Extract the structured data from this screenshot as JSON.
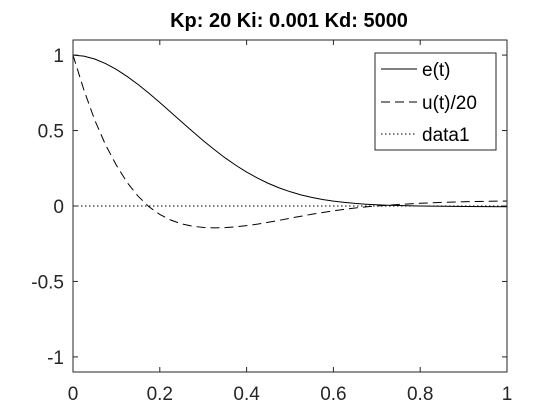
{
  "chart_data": {
    "type": "line",
    "title": "Kp: 20  Ki: 0.001  Kd: 5000",
    "xlabel": "",
    "ylabel": "",
    "xlim": [
      0,
      1
    ],
    "ylim": [
      -1.1,
      1.1
    ],
    "xticks": [
      0,
      0.2,
      0.4,
      0.6,
      0.8,
      1
    ],
    "xtick_labels": [
      "0",
      "0.2",
      "0.4",
      "0.6",
      "0.8",
      "1"
    ],
    "yticks": [
      -1,
      -0.5,
      0,
      0.5,
      1
    ],
    "ytick_labels": [
      "-1",
      "-0.5",
      "0",
      "0.5",
      "1"
    ],
    "grid": false,
    "legend_position": "top-right",
    "series": [
      {
        "name": "e(t)",
        "style": "solid",
        "color": "#000000",
        "x": [
          0,
          0.025,
          0.05,
          0.075,
          0.1,
          0.125,
          0.15,
          0.175,
          0.2,
          0.225,
          0.25,
          0.275,
          0.3,
          0.325,
          0.35,
          0.375,
          0.4,
          0.425,
          0.45,
          0.475,
          0.5,
          0.525,
          0.55,
          0.575,
          0.6,
          0.625,
          0.65,
          0.675,
          0.7,
          0.725,
          0.75,
          0.8,
          0.85,
          0.9,
          0.95,
          1.0
        ],
        "y": [
          1.0,
          0.993,
          0.974,
          0.944,
          0.905,
          0.858,
          0.805,
          0.747,
          0.686,
          0.622,
          0.558,
          0.495,
          0.433,
          0.375,
          0.32,
          0.27,
          0.225,
          0.185,
          0.15,
          0.12,
          0.095,
          0.074,
          0.057,
          0.043,
          0.032,
          0.024,
          0.017,
          0.012,
          0.008,
          0.005,
          0.003,
          0.0,
          -0.002,
          -0.003,
          -0.004,
          -0.005
        ]
      },
      {
        "name": "u(t)/20",
        "style": "dashed",
        "color": "#000000",
        "x": [
          0,
          0.025,
          0.05,
          0.075,
          0.1,
          0.125,
          0.15,
          0.175,
          0.2,
          0.225,
          0.25,
          0.275,
          0.3,
          0.325,
          0.35,
          0.375,
          0.4,
          0.425,
          0.45,
          0.475,
          0.5,
          0.525,
          0.55,
          0.575,
          0.6,
          0.625,
          0.65,
          0.675,
          0.7,
          0.725,
          0.75,
          0.8,
          0.85,
          0.9,
          0.95,
          1.0
        ],
        "y": [
          1.0,
          0.77,
          0.57,
          0.405,
          0.27,
          0.155,
          0.065,
          -0.005,
          -0.056,
          -0.093,
          -0.118,
          -0.134,
          -0.142,
          -0.145,
          -0.143,
          -0.138,
          -0.13,
          -0.12,
          -0.108,
          -0.095,
          -0.081,
          -0.068,
          -0.055,
          -0.043,
          -0.032,
          -0.022,
          -0.013,
          -0.006,
          0.0,
          0.005,
          0.01,
          0.018,
          0.024,
          0.028,
          0.031,
          0.033
        ]
      },
      {
        "name": "data1",
        "style": "dotted",
        "color": "#000000",
        "x": [
          0,
          1
        ],
        "y": [
          0,
          0
        ]
      }
    ]
  }
}
